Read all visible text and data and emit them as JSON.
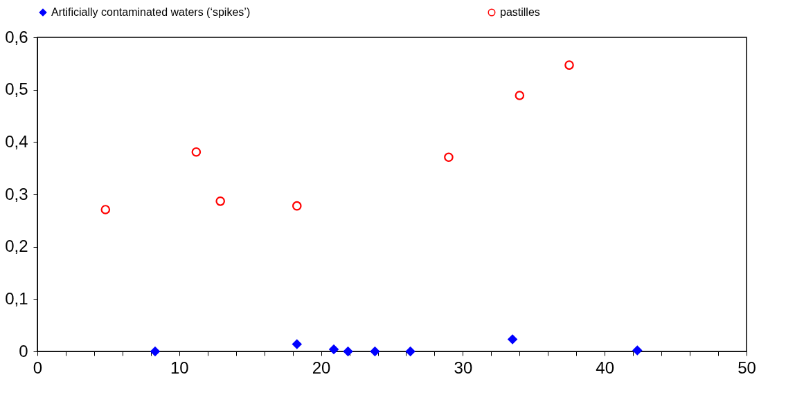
{
  "chart_data": {
    "type": "scatter",
    "legend": "top",
    "grid": false,
    "xlim": [
      0,
      50
    ],
    "xticks": [
      0,
      {
        "value": 2,
        "label": null
      },
      {
        "value": 4,
        "label": null
      },
      {
        "value": 6,
        "label": null
      },
      {
        "value": 8,
        "label": null
      },
      10,
      {
        "value": 12,
        "label": null
      },
      {
        "value": 14,
        "label": null
      },
      {
        "value": 16,
        "label": null
      },
      {
        "value": 18,
        "label": null
      },
      20,
      {
        "value": 22,
        "label": null
      },
      {
        "value": 24,
        "label": null
      },
      {
        "value": 26,
        "label": null
      },
      {
        "value": 28,
        "label": null
      },
      30,
      {
        "value": 32,
        "label": null
      },
      {
        "value": 34,
        "label": null
      },
      {
        "value": 36,
        "label": null
      },
      {
        "value": 38,
        "label": null
      },
      40,
      {
        "value": 42,
        "label": null
      },
      {
        "value": 44,
        "label": null
      },
      {
        "value": 46,
        "label": null
      },
      {
        "value": 48,
        "label": null
      },
      50
    ],
    "ylim": [
      0,
      0.6
    ],
    "yticks": [
      0,
      {
        "value": 0.1,
        "label": "0,1"
      },
      {
        "value": 0.2,
        "label": "0,2"
      },
      {
        "value": 0.3,
        "label": "0,3"
      },
      {
        "value": 0.4,
        "label": "0,4"
      },
      {
        "value": 0.5,
        "label": "0,5"
      },
      {
        "value": 0.6,
        "label": "0,6"
      }
    ],
    "series": [
      {
        "name": "Artificially contaminated waters (‘spikes’)",
        "color": "#0000ff",
        "marker": "diamond",
        "x": [
          8.3,
          18.3,
          20.9,
          21.9,
          23.8,
          26.3,
          33.5,
          42.3
        ],
        "values": [
          0,
          0.014,
          0.004,
          0,
          0,
          0,
          0.023,
          0.002
        ]
      },
      {
        "name": "pastilles",
        "color": "#ff0000",
        "marker": "circle",
        "x": [
          4.8,
          11.2,
          12.9,
          18.3,
          29.0,
          34.0,
          37.5
        ],
        "values": [
          0.271,
          0.381,
          0.287,
          0.278,
          0.371,
          0.489,
          0.547
        ]
      }
    ]
  }
}
